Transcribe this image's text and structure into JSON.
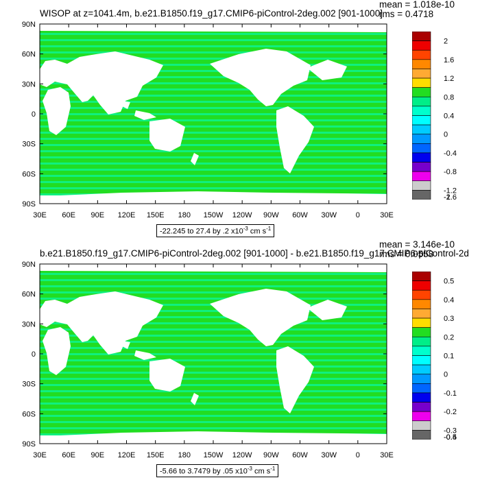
{
  "chart_data": [
    {
      "type": "heatmap",
      "title": "WISOP at z=1041.4m, b.e21.B1850.f19_g17.CMIP6-piControl-2deg.002 [901-1000]",
      "stats": {
        "mean": "mean = 1.018e-10",
        "rms": "rms = 0.4718"
      },
      "range_label": {
        "text": "-22.245 to 27.4 by .2 x10",
        "exp": "-3",
        "unit": " cm s",
        "unit_exp": "-1"
      },
      "x_ticks": [
        "30E",
        "60E",
        "90E",
        "120E",
        "150E",
        "180",
        "150W",
        "120W",
        "90W",
        "60W",
        "30W",
        "0",
        "30E"
      ],
      "y_ticks": [
        "90N",
        "60N",
        "30N",
        "0",
        "30S",
        "60S",
        "90S"
      ],
      "colorbar": {
        "labels": [
          "2",
          "1.6",
          "1.2",
          "0.8",
          "0.4",
          "0",
          "-0.4",
          "-0.8",
          "-1.2",
          "-1.6",
          "-2"
        ],
        "colors": [
          "#aa0000",
          "#ee0000",
          "#ff4400",
          "#ff8800",
          "#ffaa33",
          "#ffdd00",
          "#22dd22",
          "#00ee88",
          "#00ffcc",
          "#00ffff",
          "#00ccff",
          "#0099ff",
          "#0066ff",
          "#0000ee",
          "#7700cc",
          "#ee00ee",
          "#cccccc",
          "#666666"
        ]
      },
      "field_note_colors": [
        "#00ffcc",
        "#22dd22"
      ]
    },
    {
      "type": "heatmap",
      "title": "b.e21.B1850.f19_g17.CMIP6-piControl-2deg.002 [901-1000] - b.e21.B1850.f19_g17.CMIP6-piControl-2d",
      "stats": {
        "mean": "mean = 3.146e-10",
        "rms": "rms = 0.0558"
      },
      "range_label": {
        "text": "-5.66 to 3.7479 by .05 x10",
        "exp": "-3",
        "unit": " cm s",
        "unit_exp": "-1"
      },
      "x_ticks": [
        "30E",
        "60E",
        "90E",
        "120E",
        "150E",
        "180",
        "150W",
        "120W",
        "90W",
        "60W",
        "30W",
        "0",
        "30E"
      ],
      "y_ticks": [
        "90N",
        "60N",
        "30N",
        "0",
        "30S",
        "60S",
        "90S"
      ],
      "colorbar": {
        "labels": [
          "0.5",
          "0.4",
          "0.3",
          "0.2",
          "0.1",
          "0",
          "-0.1",
          "-0.2",
          "-0.3",
          "-0.4",
          "-0.5"
        ],
        "colors": [
          "#aa0000",
          "#ee0000",
          "#ff4400",
          "#ff8800",
          "#ffaa33",
          "#ffdd00",
          "#22dd22",
          "#00ee88",
          "#00ffcc",
          "#00ffff",
          "#00ccff",
          "#0099ff",
          "#0066ff",
          "#0000ee",
          "#7700cc",
          "#ee00ee",
          "#cccccc",
          "#666666"
        ]
      },
      "field_note_colors": [
        "#00ffcc",
        "#22dd22"
      ]
    }
  ]
}
